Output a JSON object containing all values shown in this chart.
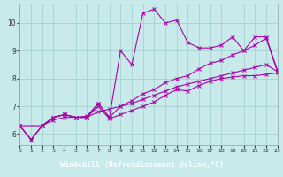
{
  "xlabel": "Windchill (Refroidissement éolien,°C)",
  "background_color": "#c8eaea",
  "grid_color": "#a0cccc",
  "line_color": "#aa00aa",
  "x_ticks": [
    0,
    1,
    2,
    3,
    4,
    5,
    6,
    7,
    8,
    9,
    10,
    11,
    12,
    13,
    14,
    15,
    16,
    17,
    18,
    19,
    20,
    21,
    22,
    23
  ],
  "y_ticks": [
    6,
    7,
    8,
    9,
    10
  ],
  "xlim": [
    0,
    23
  ],
  "ylim": [
    5.6,
    10.7
  ],
  "xlabel_bg": "#660066",
  "xlabel_color": "#ffffff",
  "lines": [
    {
      "x": [
        0,
        1,
        2,
        3,
        4,
        5,
        6,
        7,
        8,
        9,
        10,
        11,
        12,
        13,
        14,
        15,
        16,
        17,
        18,
        19,
        20,
        21,
        22,
        23
      ],
      "y": [
        6.3,
        5.8,
        6.3,
        6.6,
        6.7,
        6.6,
        6.6,
        7.1,
        6.6,
        9.0,
        8.5,
        10.35,
        10.5,
        10.0,
        10.1,
        9.3,
        9.1,
        9.1,
        9.2,
        9.5,
        9.0,
        9.5,
        9.5,
        8.3
      ]
    },
    {
      "x": [
        0,
        1,
        2,
        3,
        4,
        5,
        6,
        7,
        8,
        9,
        10,
        11,
        12,
        13,
        14,
        15,
        16,
        17,
        18,
        19,
        20,
        21,
        22,
        23
      ],
      "y": [
        6.3,
        5.8,
        6.3,
        6.6,
        6.7,
        6.6,
        6.6,
        7.0,
        6.55,
        6.7,
        6.85,
        7.0,
        7.15,
        7.4,
        7.6,
        7.55,
        7.75,
        7.9,
        8.0,
        8.05,
        8.1,
        8.1,
        8.15,
        8.2
      ]
    },
    {
      "x": [
        0,
        1,
        2,
        3,
        4,
        5,
        6,
        7,
        8,
        9,
        10,
        11,
        12,
        13,
        14,
        15,
        16,
        17,
        18,
        19,
        20,
        21,
        22,
        23
      ],
      "y": [
        6.3,
        5.8,
        6.3,
        6.5,
        6.6,
        6.6,
        6.6,
        6.8,
        6.9,
        7.0,
        7.1,
        7.25,
        7.4,
        7.55,
        7.7,
        7.8,
        7.9,
        8.0,
        8.1,
        8.2,
        8.3,
        8.4,
        8.5,
        8.25
      ]
    },
    {
      "x": [
        0,
        2,
        3,
        4,
        5,
        6,
        7,
        8,
        9,
        10,
        11,
        12,
        13,
        14,
        15,
        16,
        17,
        18,
        19,
        20,
        21,
        22,
        23
      ],
      "y": [
        6.3,
        6.3,
        6.6,
        6.7,
        6.6,
        6.65,
        7.1,
        6.6,
        7.0,
        7.2,
        7.45,
        7.6,
        7.85,
        8.0,
        8.1,
        8.35,
        8.55,
        8.65,
        8.85,
        9.0,
        9.2,
        9.45,
        8.25
      ]
    }
  ]
}
